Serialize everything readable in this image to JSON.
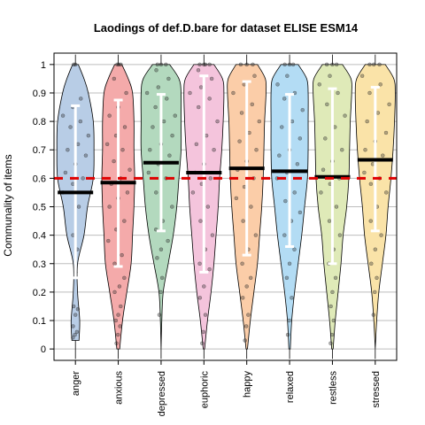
{
  "chart_data": {
    "type": "violin",
    "title": "Laodings of def.D.bare for dataset ELISE ESM14",
    "xlabel": "",
    "ylabel": "Communality of items",
    "ylim": [
      -0.04,
      1.04
    ],
    "yticks": [
      0,
      0.1,
      0.2,
      0.3,
      0.4,
      0.5,
      0.6,
      0.7,
      0.8,
      0.9,
      1
    ],
    "grid": "horizontal",
    "reference_line": {
      "value": 0.6,
      "color": "#e00000",
      "style": "dashed"
    },
    "categories": [
      "anger",
      "anxious",
      "depressed",
      "euphoric",
      "happy",
      "relaxed",
      "restless",
      "stressed"
    ],
    "series": [
      {
        "color": "#b8cde6",
        "mean": 0.55,
        "sd_low": 0.25,
        "sd_high": 0.855,
        "violin": [
          [
            0.03,
            0.05
          ],
          [
            0.1,
            0.06
          ],
          [
            0.2,
            0.03
          ],
          [
            0.3,
            0.03
          ],
          [
            0.4,
            0.12
          ],
          [
            0.5,
            0.17
          ],
          [
            0.6,
            0.25
          ],
          [
            0.7,
            0.26
          ],
          [
            0.8,
            0.25
          ],
          [
            0.9,
            0.18
          ],
          [
            0.95,
            0.12
          ],
          [
            1.0,
            0.04
          ]
        ],
        "points": [
          0.04,
          0.05,
          0.06,
          0.08,
          0.12,
          0.14,
          0.15,
          0.27,
          0.35,
          0.4,
          0.5,
          0.55,
          0.58,
          0.6,
          0.62,
          0.65,
          0.68,
          0.7,
          0.72,
          0.75,
          0.78,
          0.8,
          0.82,
          0.85,
          0.88,
          1.0,
          1.0
        ]
      },
      {
        "color": "#f4aaaa",
        "mean": 0.585,
        "sd_low": 0.29,
        "sd_high": 0.875,
        "violin": [
          [
            0.0,
            0.02
          ],
          [
            0.1,
            0.06
          ],
          [
            0.2,
            0.12
          ],
          [
            0.3,
            0.18
          ],
          [
            0.4,
            0.2
          ],
          [
            0.5,
            0.22
          ],
          [
            0.6,
            0.23
          ],
          [
            0.7,
            0.22
          ],
          [
            0.8,
            0.22
          ],
          [
            0.9,
            0.2
          ],
          [
            0.95,
            0.14
          ],
          [
            1.0,
            0.05
          ]
        ],
        "points": [
          0.02,
          0.05,
          0.08,
          0.1,
          0.12,
          0.15,
          0.2,
          0.22,
          0.25,
          0.3,
          0.33,
          0.38,
          0.42,
          0.45,
          0.5,
          0.53,
          0.55,
          0.58,
          0.6,
          0.63,
          0.66,
          0.7,
          0.72,
          0.75,
          0.78,
          0.82,
          0.85,
          0.9,
          0.95,
          1.0,
          1.0,
          1.0
        ]
      },
      {
        "color": "#b3d9be",
        "mean": 0.655,
        "sd_low": 0.415,
        "sd_high": 0.895,
        "violin": [
          [
            0.0,
            0.0
          ],
          [
            0.1,
            0.01
          ],
          [
            0.2,
            0.03
          ],
          [
            0.3,
            0.1
          ],
          [
            0.4,
            0.17
          ],
          [
            0.5,
            0.22
          ],
          [
            0.6,
            0.25
          ],
          [
            0.7,
            0.28
          ],
          [
            0.8,
            0.28
          ],
          [
            0.9,
            0.28
          ],
          [
            0.95,
            0.25
          ],
          [
            1.0,
            0.12
          ]
        ],
        "points": [
          0.12,
          0.2,
          0.25,
          0.32,
          0.35,
          0.38,
          0.42,
          0.45,
          0.5,
          0.55,
          0.6,
          0.62,
          0.65,
          0.68,
          0.7,
          0.72,
          0.75,
          0.78,
          0.8,
          0.82,
          0.85,
          0.88,
          0.9,
          0.92,
          0.95,
          0.98,
          1.0,
          1.0,
          1.0
        ]
      },
      {
        "color": "#f4c4dc",
        "mean": 0.62,
        "sd_low": 0.27,
        "sd_high": 0.96,
        "violin": [
          [
            0.0,
            0.01
          ],
          [
            0.1,
            0.05
          ],
          [
            0.2,
            0.1
          ],
          [
            0.3,
            0.14
          ],
          [
            0.4,
            0.17
          ],
          [
            0.5,
            0.2
          ],
          [
            0.6,
            0.22
          ],
          [
            0.7,
            0.25
          ],
          [
            0.8,
            0.27
          ],
          [
            0.9,
            0.28
          ],
          [
            0.95,
            0.26
          ],
          [
            1.0,
            0.14
          ]
        ],
        "points": [
          0.02,
          0.06,
          0.12,
          0.18,
          0.22,
          0.28,
          0.3,
          0.35,
          0.4,
          0.45,
          0.5,
          0.55,
          0.58,
          0.6,
          0.62,
          0.65,
          0.7,
          0.72,
          0.75,
          0.8,
          0.85,
          0.88,
          0.9,
          0.92,
          0.95,
          0.98,
          1.0,
          1.0,
          1.0,
          1.0
        ]
      },
      {
        "color": "#fbcda8",
        "mean": 0.635,
        "sd_low": 0.33,
        "sd_high": 0.94,
        "violin": [
          [
            0.0,
            0.01
          ],
          [
            0.1,
            0.05
          ],
          [
            0.2,
            0.1
          ],
          [
            0.3,
            0.15
          ],
          [
            0.4,
            0.18
          ],
          [
            0.5,
            0.21
          ],
          [
            0.6,
            0.23
          ],
          [
            0.7,
            0.24
          ],
          [
            0.8,
            0.25
          ],
          [
            0.9,
            0.27
          ],
          [
            0.95,
            0.26
          ],
          [
            1.0,
            0.15
          ]
        ],
        "points": [
          0.03,
          0.08,
          0.12,
          0.18,
          0.22,
          0.25,
          0.3,
          0.35,
          0.4,
          0.45,
          0.5,
          0.53,
          0.57,
          0.6,
          0.63,
          0.66,
          0.7,
          0.73,
          0.76,
          0.8,
          0.83,
          0.86,
          0.9,
          0.93,
          0.96,
          1.0,
          1.0,
          1.0
        ]
      },
      {
        "color": "#b3dcf4",
        "mean": 0.625,
        "sd_low": 0.36,
        "sd_high": 0.895,
        "violin": [
          [
            0.0,
            0.01
          ],
          [
            0.1,
            0.03
          ],
          [
            0.2,
            0.07
          ],
          [
            0.3,
            0.12
          ],
          [
            0.4,
            0.17
          ],
          [
            0.5,
            0.21
          ],
          [
            0.6,
            0.25
          ],
          [
            0.7,
            0.26
          ],
          [
            0.8,
            0.26
          ],
          [
            0.9,
            0.26
          ],
          [
            0.95,
            0.24
          ],
          [
            1.0,
            0.12
          ]
        ],
        "points": [
          0.05,
          0.1,
          0.18,
          0.25,
          0.3,
          0.35,
          0.4,
          0.45,
          0.48,
          0.52,
          0.55,
          0.6,
          0.62,
          0.65,
          0.68,
          0.7,
          0.74,
          0.78,
          0.8,
          0.84,
          0.88,
          0.9,
          0.93,
          0.96,
          1.0,
          1.0,
          1.0
        ]
      },
      {
        "color": "#dfeab8",
        "mean": 0.605,
        "sd_low": 0.3,
        "sd_high": 0.915,
        "violin": [
          [
            0.0,
            0.01
          ],
          [
            0.1,
            0.04
          ],
          [
            0.2,
            0.08
          ],
          [
            0.3,
            0.12
          ],
          [
            0.4,
            0.15
          ],
          [
            0.5,
            0.2
          ],
          [
            0.6,
            0.23
          ],
          [
            0.7,
            0.24
          ],
          [
            0.8,
            0.25
          ],
          [
            0.9,
            0.27
          ],
          [
            0.95,
            0.26
          ],
          [
            1.0,
            0.14
          ]
        ],
        "points": [
          0.02,
          0.05,
          0.1,
          0.15,
          0.2,
          0.25,
          0.3,
          0.35,
          0.4,
          0.45,
          0.5,
          0.55,
          0.58,
          0.6,
          0.63,
          0.66,
          0.7,
          0.74,
          0.78,
          0.82,
          0.86,
          0.9,
          0.93,
          0.96,
          1.0,
          1.0,
          1.0
        ]
      },
      {
        "color": "#fae3a8",
        "mean": 0.665,
        "sd_low": 0.415,
        "sd_high": 0.92,
        "violin": [
          [
            0.0,
            0.0
          ],
          [
            0.1,
            0.02
          ],
          [
            0.2,
            0.05
          ],
          [
            0.3,
            0.1
          ],
          [
            0.4,
            0.15
          ],
          [
            0.5,
            0.18
          ],
          [
            0.6,
            0.22
          ],
          [
            0.7,
            0.25
          ],
          [
            0.8,
            0.27
          ],
          [
            0.9,
            0.28
          ],
          [
            0.95,
            0.26
          ],
          [
            1.0,
            0.14
          ]
        ],
        "points": [
          0.12,
          0.2,
          0.25,
          0.3,
          0.35,
          0.4,
          0.45,
          0.5,
          0.55,
          0.58,
          0.6,
          0.62,
          0.65,
          0.68,
          0.7,
          0.73,
          0.76,
          0.8,
          0.83,
          0.86,
          0.9,
          0.93,
          0.96,
          1.0,
          1.0,
          1.0
        ]
      }
    ]
  }
}
